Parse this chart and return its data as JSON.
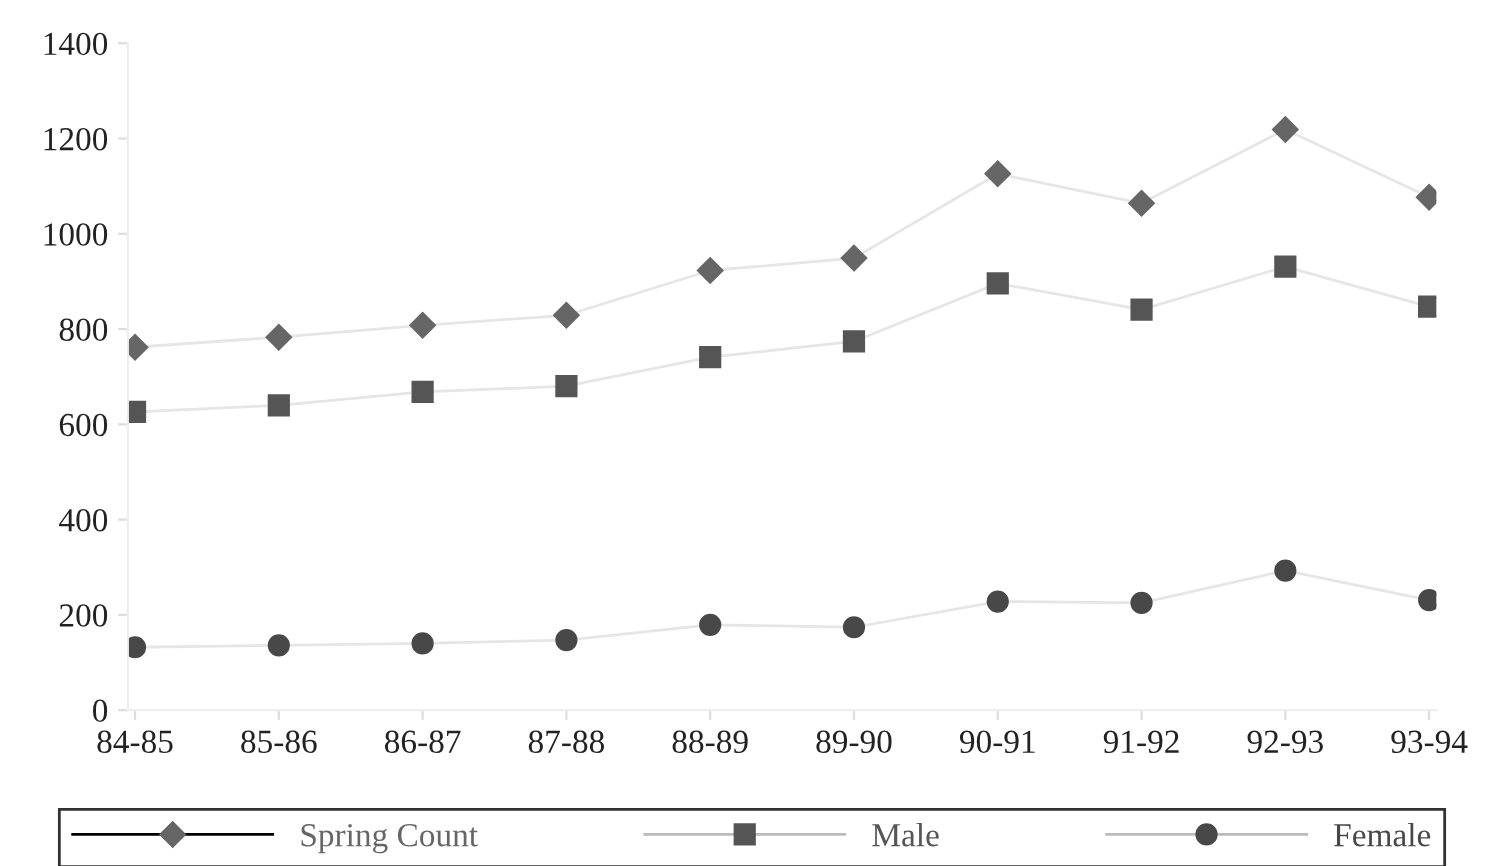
{
  "chart_data": {
    "type": "line",
    "categories": [
      "84-85",
      "85-86",
      "86-87",
      "87-88",
      "88-89",
      "89-90",
      "90-91",
      "91-92",
      "92-93",
      "93-94"
    ],
    "series": [
      {
        "name": "Spring Count",
        "color": "#666666",
        "marker": "diamond",
        "values": [
          762,
          783,
          808,
          829,
          923,
          949,
          1126,
          1064,
          1219,
          1077
        ]
      },
      {
        "name": "Male",
        "color": "#555555",
        "marker": "square",
        "values": [
          626,
          640,
          668,
          680,
          741,
          774,
          896,
          841,
          931,
          847
        ]
      },
      {
        "name": "Female",
        "color": "#484848",
        "marker": "circle",
        "values": [
          132,
          136,
          140,
          147,
          179,
          174,
          228,
          225,
          293,
          231
        ]
      }
    ],
    "ylim": [
      0,
      1400
    ],
    "yticks": [
      0,
      200,
      400,
      600,
      800,
      1000,
      1200,
      1400
    ],
    "grid": false,
    "legend": "bottom"
  }
}
